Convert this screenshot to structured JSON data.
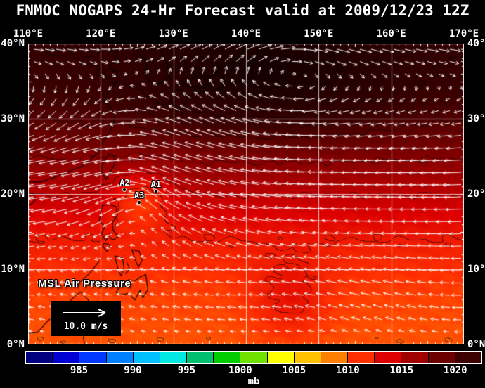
{
  "title": "FNMOC NOGAPS 24-Hr Forecast valid at 2009/12/23 12Z",
  "map": {
    "field_label": "MSL Air Pressure",
    "wind_legend_label": "10.0 m/s",
    "extent": {
      "lon_min": 110,
      "lon_max": 170,
      "lat_min": 0,
      "lat_max": 40
    },
    "grid_interval_deg": 10,
    "lon_tick_values": [
      110,
      120,
      130,
      140,
      150,
      160,
      170
    ],
    "lon_tick_labels": [
      "110°E",
      "120°E",
      "130°E",
      "140°E",
      "150°E",
      "160°E",
      "170°E"
    ],
    "lat_tick_values": [
      40,
      30,
      20,
      10,
      0
    ],
    "lat_tick_labels": [
      "40°N",
      "30°N",
      "20°N",
      "10°N",
      "0°N"
    ],
    "storms": [
      {
        "id": "A2",
        "lon": 123.3,
        "lat": 20.6
      },
      {
        "id": "A1",
        "lon": 127.6,
        "lat": 20.4
      },
      {
        "id": "A3",
        "lon": 125.3,
        "lat": 18.9
      }
    ],
    "coastlines": [
      [
        [
          110,
          21.6
        ],
        [
          111.8,
          21.6
        ],
        [
          113.2,
          22.1
        ],
        [
          114.5,
          22.5
        ],
        [
          116,
          23.2
        ],
        [
          117.5,
          23.7
        ],
        [
          118.6,
          24.6
        ],
        [
          119.6,
          25.5
        ],
        [
          120.2,
          26.8
        ],
        [
          121.2,
          28.2
        ],
        [
          121.8,
          29.6
        ],
        [
          122,
          30.6
        ],
        [
          121.2,
          31.6
        ],
        [
          120.5,
          32.3
        ],
        [
          120.9,
          33.3
        ],
        [
          121.8,
          34.4
        ],
        [
          122.3,
          35.1
        ],
        [
          122.2,
          36.2
        ],
        [
          121.2,
          36.8
        ],
        [
          121.6,
          37.4
        ],
        [
          122.5,
          37.6
        ],
        [
          122.2,
          39.0
        ],
        [
          121.2,
          38.9
        ],
        [
          121.8,
          40.0
        ]
      ],
      [
        [
          124.4,
          40.0
        ],
        [
          124.8,
          39.2
        ],
        [
          125.3,
          38.6
        ],
        [
          126.2,
          37.8
        ],
        [
          126.4,
          36.9
        ],
        [
          126.3,
          36.0
        ],
        [
          126.6,
          35.1
        ],
        [
          127.5,
          34.5
        ],
        [
          128.6,
          34.9
        ],
        [
          129.3,
          35.3
        ],
        [
          129.4,
          36.3
        ],
        [
          129.1,
          37.3
        ],
        [
          128.6,
          38.4
        ],
        [
          128.2,
          39.3
        ],
        [
          127.8,
          40.0
        ]
      ],
      [
        [
          129.9,
          33.5
        ],
        [
          129.6,
          32.6
        ],
        [
          130.2,
          31.3
        ],
        [
          130.7,
          31.0
        ],
        [
          131.2,
          31.4
        ],
        [
          131.9,
          32.6
        ],
        [
          131.7,
          33.5
        ],
        [
          130.9,
          33.9
        ],
        [
          129.9,
          33.5
        ]
      ],
      [
        [
          132.8,
          33.9
        ],
        [
          134.3,
          34.2
        ],
        [
          134.7,
          33.7
        ],
        [
          133.5,
          33.4
        ],
        [
          132.8,
          33.9
        ]
      ],
      [
        [
          131.0,
          34.4
        ],
        [
          132.6,
          34.2
        ],
        [
          134.6,
          34.6
        ],
        [
          135.3,
          33.9
        ],
        [
          136.9,
          34.3
        ],
        [
          138.3,
          34.6
        ],
        [
          139.0,
          35.0
        ],
        [
          139.8,
          35.3
        ],
        [
          140.4,
          35.2
        ],
        [
          140.9,
          35.7
        ],
        [
          140.6,
          36.5
        ],
        [
          141.0,
          37.5
        ],
        [
          141.5,
          38.4
        ],
        [
          141.7,
          39.5
        ],
        [
          141.8,
          40.0
        ]
      ],
      [
        [
          131.0,
          34.4
        ],
        [
          133.0,
          35.5
        ],
        [
          135.5,
          35.7
        ],
        [
          136.6,
          36.9
        ],
        [
          137.4,
          36.8
        ],
        [
          138.6,
          37.9
        ],
        [
          139.9,
          39.0
        ],
        [
          140.1,
          40.0
        ]
      ],
      [
        [
          121.1,
          25.3
        ],
        [
          121.9,
          25.0
        ],
        [
          121.9,
          24.0
        ],
        [
          121.2,
          22.7
        ],
        [
          120.7,
          21.9
        ],
        [
          120.1,
          23.1
        ],
        [
          120.2,
          24.0
        ],
        [
          121.1,
          25.3
        ]
      ],
      [
        [
          119.8,
          16.4
        ],
        [
          120.2,
          18.5
        ],
        [
          121.2,
          18.6
        ],
        [
          122.1,
          18.3
        ],
        [
          122.3,
          17.2
        ],
        [
          121.6,
          16.2
        ],
        [
          121.7,
          15.2
        ],
        [
          122.4,
          14.3
        ],
        [
          121.7,
          13.9
        ],
        [
          121.1,
          14.3
        ],
        [
          120.7,
          13.8
        ],
        [
          120.1,
          14.7
        ],
        [
          120.6,
          15.7
        ],
        [
          119.8,
          16.4
        ]
      ],
      [
        [
          124.3,
          12.6
        ],
        [
          125.3,
          12.4
        ],
        [
          125.7,
          11.2
        ],
        [
          125.2,
          10.3
        ],
        [
          124.8,
          11.1
        ],
        [
          124.3,
          12.6
        ]
      ],
      [
        [
          121.9,
          11.8
        ],
        [
          123.0,
          11.5
        ],
        [
          123.2,
          10.2
        ],
        [
          122.8,
          9.1
        ],
        [
          122.4,
          10.0
        ],
        [
          121.9,
          11.8
        ]
      ],
      [
        [
          123.6,
          10.9
        ],
        [
          124.0,
          10.0
        ],
        [
          123.4,
          9.4
        ]
      ],
      [
        [
          122.1,
          6.9
        ],
        [
          122.8,
          7.9
        ],
        [
          123.8,
          8.6
        ],
        [
          124.8,
          8.5
        ],
        [
          125.5,
          9.0
        ],
        [
          126.2,
          9.3
        ],
        [
          126.5,
          7.3
        ],
        [
          125.8,
          6.2
        ],
        [
          125.4,
          7.2
        ],
        [
          124.7,
          5.9
        ],
        [
          123.8,
          6.8
        ],
        [
          122.9,
          6.6
        ],
        [
          122.1,
          6.9
        ]
      ],
      [
        [
          117.2,
          8.3
        ],
        [
          118.5,
          9.5
        ],
        [
          119.4,
          10.6
        ],
        [
          119.8,
          11.1
        ]
      ],
      [
        [
          120.5,
          13.5
        ],
        [
          121.2,
          13.2
        ],
        [
          120.9,
          12.3
        ],
        [
          120.3,
          13.0
        ],
        [
          120.5,
          13.5
        ]
      ],
      [
        [
          110.0,
          20.1
        ],
        [
          110.7,
          20.0
        ],
        [
          111.0,
          19.2
        ],
        [
          110.4,
          18.6
        ],
        [
          110.0,
          18.7
        ]
      ],
      [
        [
          110.0,
          1.5
        ],
        [
          111.3,
          1.6
        ],
        [
          112.6,
          3.0
        ],
        [
          113.9,
          4.2
        ],
        [
          115.2,
          5.2
        ],
        [
          116.2,
          6.2
        ],
        [
          117.2,
          7.0
        ],
        [
          118.3,
          5.9
        ],
        [
          117.9,
          4.6
        ],
        [
          118.4,
          4.0
        ],
        [
          117.5,
          3.4
        ],
        [
          118.0,
          2.2
        ],
        [
          117.6,
          0.9
        ],
        [
          117.8,
          0.0
        ]
      ]
    ],
    "island_dots": [
      [
        124.3,
        24.5
      ],
      [
        125.4,
        24.8
      ],
      [
        126.8,
        26.1
      ],
      [
        127.9,
        26.6
      ],
      [
        128.7,
        27.4
      ],
      [
        129.5,
        28.3
      ],
      [
        129.9,
        29.7
      ],
      [
        130.4,
        30.5
      ],
      [
        131.2,
        30.7
      ],
      [
        139.5,
        34.2
      ],
      [
        140.0,
        32.4
      ],
      [
        121.9,
        19.3
      ]
    ]
  },
  "colorbar": {
    "unit": "mb",
    "tick_values": [
      985,
      990,
      995,
      1000,
      1005,
      1010,
      1015,
      1020
    ],
    "tick_labels": [
      "985",
      "990",
      "995",
      "1000",
      "1005",
      "1010",
      "1015",
      "1020"
    ],
    "range": [
      980,
      1022.5
    ],
    "cell_colors": [
      "#000080",
      "#0000d2",
      "#0038ff",
      "#0080ff",
      "#00c0ff",
      "#00e8e0",
      "#00c070",
      "#00cc00",
      "#70e000",
      "#ffff00",
      "#ffc000",
      "#ff8000",
      "#ff3000",
      "#dc0000",
      "#a00000",
      "#6c0000",
      "#3c0000"
    ],
    "overflow_color": "#160000"
  },
  "chart_data": {
    "type": "heatmap",
    "variable": "Mean sea-level air pressure with 10 m wind vectors",
    "units": "mb",
    "title": "FNMOC NOGAPS 24-Hr Forecast valid at 2009/12/23 12Z",
    "extent": {
      "lon_min": 110,
      "lon_max": 170,
      "lat_min": 0,
      "lat_max": 40
    },
    "colorbar_ticks": [
      985,
      990,
      995,
      1000,
      1005,
      1010,
      1015,
      1020
    ],
    "visible_pressure_range_mb": [
      1008,
      1026
    ],
    "annotations": [
      "A1",
      "A2",
      "A3",
      "MSL Air Pressure",
      "10.0 m/s"
    ],
    "summary": "Pressure rises from about 1008-1010 mb near the equator (orange-red) to more than 1022 mb (near-black maroon) over a subtropical ridge centered near 33-38N 135-155E. Strong low-level northeasterlies (white vectors) blow south of the ridge; three tropical disturbances A1, A2, A3 are marked near 19-21N 123-128E east of Luzon."
  },
  "render_model": {
    "pressure": {
      "base_p": 1009.8,
      "base_amp": 13.5,
      "base_lat": 23,
      "base_width": 6.5,
      "features": [
        {
          "lon": 143,
          "lat": 35.5,
          "slon": 17,
          "slat": 7,
          "amp": 4.5
        },
        {
          "lon": 125.5,
          "lat": 19.5,
          "slon": 4,
          "slat": 4,
          "amp": -3.5
        },
        {
          "lon": 146,
          "lat": 6,
          "slon": 5.3,
          "slat": 5.3,
          "amp": 2.2
        }
      ],
      "noise_amp": 0.3,
      "contour_interval": 2.5
    },
    "wind": {
      "easterly_jet": {
        "amp": -14,
        "lat": 22,
        "width": 8
      },
      "trades": {
        "amp": -5,
        "lat": 7,
        "width": 6
      },
      "westerlies": {
        "amp": 9,
        "lat": 40,
        "width": 5
      },
      "surge": {
        "amp": -6,
        "lon": 116,
        "lon_width": 9,
        "lat": 32,
        "lat_width": 7
      },
      "anticyclone": {
        "lon": 145,
        "lat": 37,
        "ku": 120,
        "kv": 60,
        "soft": 60
      },
      "cyclone": {
        "lon": 125.5,
        "lat": 19.5,
        "k": 45,
        "soft": 8
      },
      "arrow_dx": 16,
      "arrow_dy": 17.5,
      "len_base": 3.5,
      "len_per_ms": 1.4,
      "len_max": 26
    }
  }
}
